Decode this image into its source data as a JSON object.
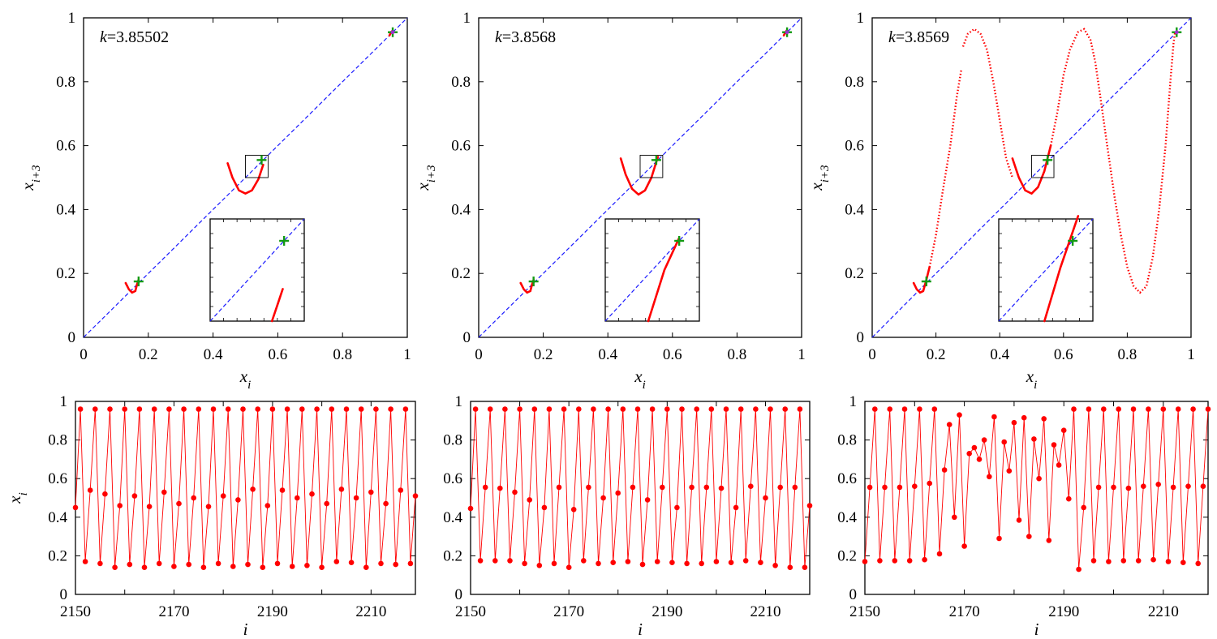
{
  "figure": {
    "top_xlabel": "x",
    "top_xlabel_sub": "i",
    "top_ylabel": "x",
    "top_ylabel_sub": "i+3",
    "bottom_xlabel": "i",
    "bottom_ylabel": "x",
    "bottom_ylabel_sub": "i",
    "colors": {
      "map_curve": "#ff0000",
      "diagonal": "#1a1aff",
      "fixed_points": "#139a13",
      "series": "#ff0000"
    }
  },
  "chart_data": [
    {
      "type": "line",
      "panel": "top-left",
      "annotation_var": "k",
      "annotation_value": "=3.85502",
      "xlim": [
        0,
        1
      ],
      "ylim": [
        0,
        1
      ],
      "xticks": [
        "0",
        "0.2",
        "0.4",
        "0.6",
        "0.8",
        "1"
      ],
      "yticks": [
        "0",
        "0.2",
        "0.4",
        "0.6",
        "0.8",
        "1"
      ],
      "diagonal": [
        [
          0,
          0
        ],
        [
          1,
          1
        ]
      ],
      "fixed_points": [
        [
          0.17,
          0.175
        ],
        [
          0.55,
          0.555
        ],
        [
          0.955,
          0.955
        ]
      ],
      "curve_segments": [
        [
          [
            0.13,
            0.17
          ],
          [
            0.14,
            0.15
          ],
          [
            0.15,
            0.14
          ],
          [
            0.16,
            0.145
          ],
          [
            0.165,
            0.165
          ],
          [
            0.17,
            0.18
          ]
        ],
        [
          [
            0.445,
            0.545
          ],
          [
            0.46,
            0.5
          ],
          [
            0.48,
            0.46
          ],
          [
            0.5,
            0.45
          ],
          [
            0.52,
            0.46
          ],
          [
            0.54,
            0.495
          ],
          [
            0.555,
            0.54
          ]
        ],
        [
          [
            0.945,
            0.945
          ],
          [
            0.95,
            0.955
          ],
          [
            0.955,
            0.96
          ]
        ]
      ],
      "zoom_box": [
        0.5,
        0.5,
        0.57,
        0.57
      ],
      "inset": {
        "xlim": [
          0.5,
          0.57
        ],
        "ylim": [
          0.5,
          0.57
        ],
        "fixed_point": [
          0.555,
          0.555
        ],
        "curve": [
          [
            0.546,
            0.5
          ],
          [
            0.55,
            0.511
          ],
          [
            0.554,
            0.522
          ]
        ]
      }
    },
    {
      "type": "line",
      "panel": "top-center",
      "annotation_var": "k",
      "annotation_value": "=3.8568",
      "xlim": [
        0,
        1
      ],
      "ylim": [
        0,
        1
      ],
      "xticks": [
        "0",
        "0.2",
        "0.4",
        "0.6",
        "0.8",
        "1"
      ],
      "yticks": [
        "0",
        "0.2",
        "0.4",
        "0.6",
        "0.8",
        "1"
      ],
      "diagonal": [
        [
          0,
          0
        ],
        [
          1,
          1
        ]
      ],
      "fixed_points": [
        [
          0.17,
          0.175
        ],
        [
          0.55,
          0.555
        ],
        [
          0.955,
          0.955
        ]
      ],
      "curve_segments": [
        [
          [
            0.13,
            0.17
          ],
          [
            0.14,
            0.15
          ],
          [
            0.15,
            0.14
          ],
          [
            0.16,
            0.145
          ],
          [
            0.165,
            0.165
          ],
          [
            0.17,
            0.18
          ]
        ],
        [
          [
            0.44,
            0.56
          ],
          [
            0.455,
            0.51
          ],
          [
            0.475,
            0.465
          ],
          [
            0.495,
            0.447
          ],
          [
            0.515,
            0.46
          ],
          [
            0.535,
            0.5
          ],
          [
            0.555,
            0.565
          ]
        ],
        [
          [
            0.945,
            0.945
          ],
          [
            0.95,
            0.955
          ],
          [
            0.955,
            0.962
          ]
        ]
      ],
      "zoom_box": [
        0.5,
        0.5,
        0.57,
        0.57
      ],
      "inset": {
        "xlim": [
          0.5,
          0.57
        ],
        "ylim": [
          0.5,
          0.57
        ],
        "fixed_point": [
          0.555,
          0.555
        ],
        "curve": [
          [
            0.532,
            0.5
          ],
          [
            0.544,
            0.535
          ],
          [
            0.555,
            0.557
          ]
        ]
      }
    },
    {
      "type": "line",
      "panel": "top-right",
      "annotation_var": "k",
      "annotation_value": "=3.8569",
      "xlim": [
        0,
        1
      ],
      "ylim": [
        0,
        1
      ],
      "xticks": [
        "0",
        "0.2",
        "0.4",
        "0.6",
        "0.8",
        "1"
      ],
      "yticks": [
        "0",
        "0.2",
        "0.4",
        "0.6",
        "0.8",
        "1"
      ],
      "diagonal": [
        [
          0,
          0
        ],
        [
          1,
          1
        ]
      ],
      "fixed_points": [
        [
          0.17,
          0.175
        ],
        [
          0.55,
          0.555
        ],
        [
          0.955,
          0.955
        ]
      ],
      "curve_segments": [
        [
          [
            0.13,
            0.17
          ],
          [
            0.14,
            0.15
          ],
          [
            0.15,
            0.14
          ],
          [
            0.16,
            0.145
          ],
          [
            0.17,
            0.18
          ],
          [
            0.18,
            0.22
          ]
        ],
        [
          [
            0.44,
            0.56
          ],
          [
            0.46,
            0.5
          ],
          [
            0.48,
            0.46
          ],
          [
            0.5,
            0.45
          ],
          [
            0.52,
            0.47
          ],
          [
            0.54,
            0.52
          ],
          [
            0.56,
            0.6
          ]
        ]
      ],
      "dotted_segments": [
        [
          [
            0.18,
            0.22
          ],
          [
            0.2,
            0.32
          ],
          [
            0.22,
            0.45
          ],
          [
            0.245,
            0.6
          ],
          [
            0.265,
            0.75
          ],
          [
            0.28,
            0.84
          ]
        ],
        [
          [
            0.285,
            0.91
          ],
          [
            0.3,
            0.95
          ],
          [
            0.32,
            0.965
          ],
          [
            0.34,
            0.95
          ],
          [
            0.36,
            0.9
          ],
          [
            0.38,
            0.8
          ],
          [
            0.4,
            0.68
          ],
          [
            0.42,
            0.56
          ],
          [
            0.44,
            0.5
          ]
        ],
        [
          [
            0.56,
            0.6
          ],
          [
            0.58,
            0.7
          ],
          [
            0.6,
            0.82
          ],
          [
            0.62,
            0.9
          ],
          [
            0.645,
            0.955
          ],
          [
            0.665,
            0.965
          ],
          [
            0.685,
            0.93
          ],
          [
            0.7,
            0.86
          ],
          [
            0.72,
            0.72
          ],
          [
            0.74,
            0.58
          ],
          [
            0.76,
            0.44
          ],
          [
            0.78,
            0.32
          ]
        ],
        [
          [
            0.78,
            0.32
          ],
          [
            0.8,
            0.22
          ],
          [
            0.82,
            0.16
          ],
          [
            0.84,
            0.14
          ],
          [
            0.86,
            0.16
          ],
          [
            0.88,
            0.25
          ],
          [
            0.9,
            0.4
          ],
          [
            0.92,
            0.6
          ],
          [
            0.935,
            0.8
          ],
          [
            0.945,
            0.92
          ],
          [
            0.95,
            0.955
          ]
        ]
      ],
      "zoom_box": [
        0.5,
        0.5,
        0.57,
        0.57
      ],
      "inset": {
        "xlim": [
          0.5,
          0.57
        ],
        "ylim": [
          0.5,
          0.57
        ],
        "fixed_point": [
          0.555,
          0.555
        ],
        "curve": [
          [
            0.534,
            0.5
          ],
          [
            0.546,
            0.537
          ],
          [
            0.559,
            0.572
          ]
        ]
      }
    },
    {
      "type": "line",
      "panel": "bottom-left",
      "xlim": [
        2150,
        2219
      ],
      "ylim": [
        0,
        1
      ],
      "xticks": [
        "2150",
        "2170",
        "2190",
        "2210"
      ],
      "yticks": [
        "0",
        "0.2",
        "0.4",
        "0.6",
        "0.8",
        "1"
      ],
      "start_index": 2150,
      "values": [
        0.45,
        0.96,
        0.17,
        0.54,
        0.96,
        0.16,
        0.52,
        0.96,
        0.14,
        0.46,
        0.96,
        0.155,
        0.51,
        0.96,
        0.14,
        0.455,
        0.96,
        0.16,
        0.53,
        0.96,
        0.145,
        0.47,
        0.96,
        0.155,
        0.5,
        0.96,
        0.14,
        0.455,
        0.96,
        0.16,
        0.51,
        0.96,
        0.145,
        0.49,
        0.96,
        0.155,
        0.545,
        0.96,
        0.14,
        0.46,
        0.96,
        0.16,
        0.54,
        0.96,
        0.145,
        0.5,
        0.96,
        0.15,
        0.52,
        0.96,
        0.14,
        0.47,
        0.96,
        0.17,
        0.545,
        0.96,
        0.165,
        0.5,
        0.96,
        0.14,
        0.53,
        0.96,
        0.16,
        0.47,
        0.96,
        0.155,
        0.54,
        0.96,
        0.16,
        0.51
      ]
    },
    {
      "type": "line",
      "panel": "bottom-center",
      "xlim": [
        2150,
        2219
      ],
      "ylim": [
        0,
        1
      ],
      "xticks": [
        "2150",
        "2170",
        "2190",
        "2210"
      ],
      "yticks": [
        "0",
        "0.2",
        "0.4",
        "0.6",
        "0.8",
        "1"
      ],
      "start_index": 2150,
      "values": [
        0.445,
        0.96,
        0.175,
        0.555,
        0.96,
        0.175,
        0.55,
        0.96,
        0.175,
        0.53,
        0.96,
        0.16,
        0.49,
        0.96,
        0.15,
        0.45,
        0.96,
        0.16,
        0.555,
        0.96,
        0.14,
        0.44,
        0.96,
        0.175,
        0.555,
        0.96,
        0.16,
        0.5,
        0.96,
        0.165,
        0.525,
        0.96,
        0.17,
        0.555,
        0.96,
        0.155,
        0.49,
        0.96,
        0.17,
        0.555,
        0.96,
        0.165,
        0.45,
        0.96,
        0.16,
        0.555,
        0.96,
        0.16,
        0.555,
        0.96,
        0.17,
        0.55,
        0.96,
        0.165,
        0.45,
        0.96,
        0.175,
        0.56,
        0.96,
        0.165,
        0.5,
        0.96,
        0.15,
        0.555,
        0.96,
        0.14,
        0.555,
        0.96,
        0.14,
        0.46
      ]
    },
    {
      "type": "line",
      "panel": "bottom-right",
      "xlim": [
        2150,
        2219
      ],
      "ylim": [
        0,
        1
      ],
      "xticks": [
        "2150",
        "2170",
        "2190",
        "2210"
      ],
      "yticks": [
        "0",
        "0.2",
        "0.4",
        "0.6",
        "0.8",
        "1"
      ],
      "start_index": 2150,
      "values": [
        0.17,
        0.555,
        0.96,
        0.175,
        0.555,
        0.96,
        0.175,
        0.555,
        0.96,
        0.175,
        0.56,
        0.96,
        0.18,
        0.575,
        0.96,
        0.21,
        0.645,
        0.88,
        0.4,
        0.93,
        0.25,
        0.73,
        0.76,
        0.7,
        0.8,
        0.61,
        0.92,
        0.29,
        0.79,
        0.64,
        0.89,
        0.385,
        0.915,
        0.3,
        0.805,
        0.6,
        0.91,
        0.28,
        0.775,
        0.67,
        0.85,
        0.495,
        0.96,
        0.13,
        0.45,
        0.96,
        0.175,
        0.555,
        0.96,
        0.17,
        0.555,
        0.96,
        0.175,
        0.55,
        0.96,
        0.175,
        0.56,
        0.96,
        0.18,
        0.57,
        0.96,
        0.17,
        0.555,
        0.96,
        0.165,
        0.56,
        0.96,
        0.16,
        0.56,
        0.96
      ]
    }
  ]
}
